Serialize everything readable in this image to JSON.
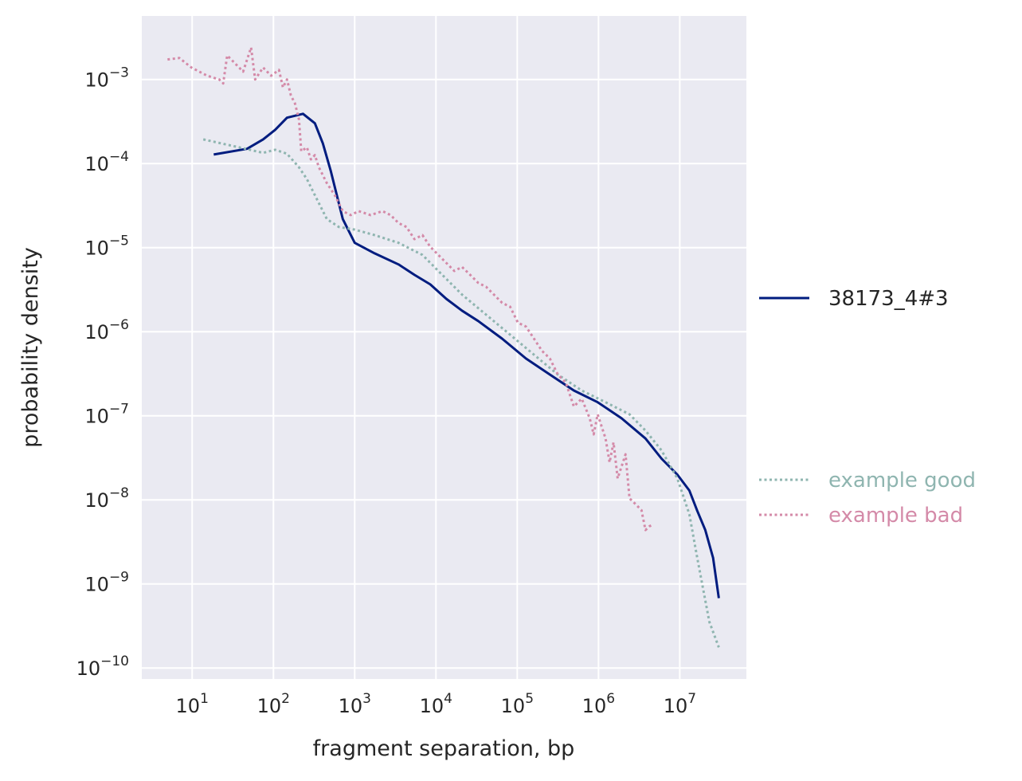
{
  "chart_data": {
    "type": "line",
    "title": "",
    "xlabel": "fragment separation, bp",
    "ylabel": "probability density",
    "xscale": "log",
    "yscale": "log",
    "xlim": [
      2.4,
      66000000
    ],
    "ylim": [
      7.4e-11,
      0.0057
    ],
    "grid": true,
    "background": "#eaeaf2",
    "tick_base": "10",
    "x_tick_exponents": [
      "1",
      "2",
      "3",
      "4",
      "5",
      "6",
      "7"
    ],
    "y_tick_exponents": [
      "−3",
      "−4",
      "−5",
      "−6",
      "−7",
      "−8",
      "−9",
      "−10"
    ],
    "legend_placement": "outside-right",
    "series": [
      {
        "name": "38173_4#3",
        "color": "#001c7f",
        "style": "solid",
        "x": [
          18.4,
          47.4,
          74.6,
          105,
          147,
          231,
          324,
          406,
          508,
          713,
          1000,
          1760,
          3460,
          5430,
          8510,
          13400,
          20900,
          33100,
          65200,
          128000,
          252000,
          497000,
          977000,
          1920000,
          3780000,
          5960000,
          9330000,
          13100000,
          16400000,
          20600000,
          25700000,
          30200000
        ],
        "y": [
          0.000128,
          0.00015,
          0.000194,
          0.000252,
          0.000351,
          0.000391,
          0.000301,
          0.000174,
          8.13e-05,
          2.19e-05,
          1.14e-05,
          8.55e-06,
          6.31e-06,
          4.74e-06,
          3.65e-06,
          2.46e-06,
          1.78e-06,
          1.34e-06,
          8.26e-07,
          4.79e-07,
          3.09e-07,
          2e-07,
          1.45e-07,
          9.33e-08,
          5.37e-08,
          3.09e-08,
          2e-08,
          1.29e-08,
          7.41e-09,
          4.37e-09,
          2.04e-09,
          6.76e-10
        ]
      },
      {
        "name": "example good",
        "color": "#8fb5b0",
        "style": "dotted",
        "x": [
          13.7,
          37.8,
          74.6,
          105,
          147,
          206,
          258,
          324,
          454,
          637,
          1000,
          1760,
          3460,
          6810,
          10700,
          21100,
          41500,
          81700,
          161000,
          316000,
          622000,
          1220000,
          2410000,
          3780000,
          5960000,
          9330000,
          13100000,
          16400000,
          23100000,
          30200000
        ],
        "y": [
          0.000194,
          0.000156,
          0.000134,
          0.000146,
          0.000131,
          9.04e-05,
          6.52e-05,
          4.21e-05,
          2.19e-05,
          1.76e-05,
          1.64e-05,
          1.41e-05,
          1.14e-05,
          8.18e-06,
          5.28e-06,
          2.74e-06,
          1.59e-06,
          9.2e-07,
          5.33e-07,
          3.09e-07,
          2e-07,
          1.45e-07,
          1.04e-07,
          6.68e-08,
          3.87e-08,
          1.8e-08,
          6.75e-09,
          2.04e-09,
          3.55e-10,
          1.76e-10
        ]
      },
      {
        "name": "example bad",
        "color": "#d48aa8",
        "style": "dotted",
        "x": [
          4.97,
          6.97,
          9.77,
          15.3,
          21.5,
          24.1,
          27.0,
          33.8,
          42.4,
          53.1,
          59.6,
          74.6,
          93.5,
          117,
          131,
          147,
          164,
          184,
          206,
          220,
          258,
          289,
          324,
          362,
          454,
          569,
          713,
          893,
          1120,
          1570,
          2200,
          2760,
          3460,
          4340,
          5430,
          6810,
          8510,
          10700,
          13400,
          16800,
          20900,
          26400,
          33100,
          41500,
          52000,
          65200,
          81700,
          102000,
          128000,
          161000,
          201000,
          252000,
          316000,
          396000,
          497000,
          622000,
          780000,
          873000,
          977000,
          1220000,
          1370000,
          1530000,
          1720000,
          2150000,
          2410000,
          2700000,
          3380000,
          3780000,
          4240000,
          4740000
        ],
        "y": [
          0.00173,
          0.0018,
          0.00139,
          0.00111,
          0.001,
          0.000897,
          0.00193,
          0.00155,
          0.00124,
          0.0024,
          0.001,
          0.00139,
          0.00111,
          0.0013,
          0.000804,
          0.001,
          0.000646,
          0.000519,
          0.000336,
          0.00014,
          0.000156,
          0.000112,
          0.000126,
          9.04e-05,
          5.85e-05,
          4.21e-05,
          2.72e-05,
          2.44e-05,
          2.72e-05,
          2.44e-05,
          2.72e-05,
          2.44e-05,
          1.96e-05,
          1.76e-05,
          1.26e-05,
          1.41e-05,
          1.02e-05,
          8.18e-06,
          6.58e-06,
          5.28e-06,
          5.89e-06,
          4.74e-06,
          3.81e-06,
          3.41e-06,
          2.74e-06,
          2.2e-06,
          1.98e-06,
          1.28e-06,
          1.15e-06,
          8.26e-07,
          5.94e-07,
          4.79e-07,
          3.09e-07,
          2.48e-07,
          1.29e-07,
          1.6e-07,
          9.29e-08,
          6e-08,
          1.04e-07,
          5.37e-08,
          2.79e-08,
          4.82e-08,
          1.8e-08,
          3.48e-08,
          1.04e-08,
          9.38e-09,
          7.53e-09,
          4.37e-09,
          4.86e-09,
          5.08e-09
        ]
      }
    ]
  }
}
